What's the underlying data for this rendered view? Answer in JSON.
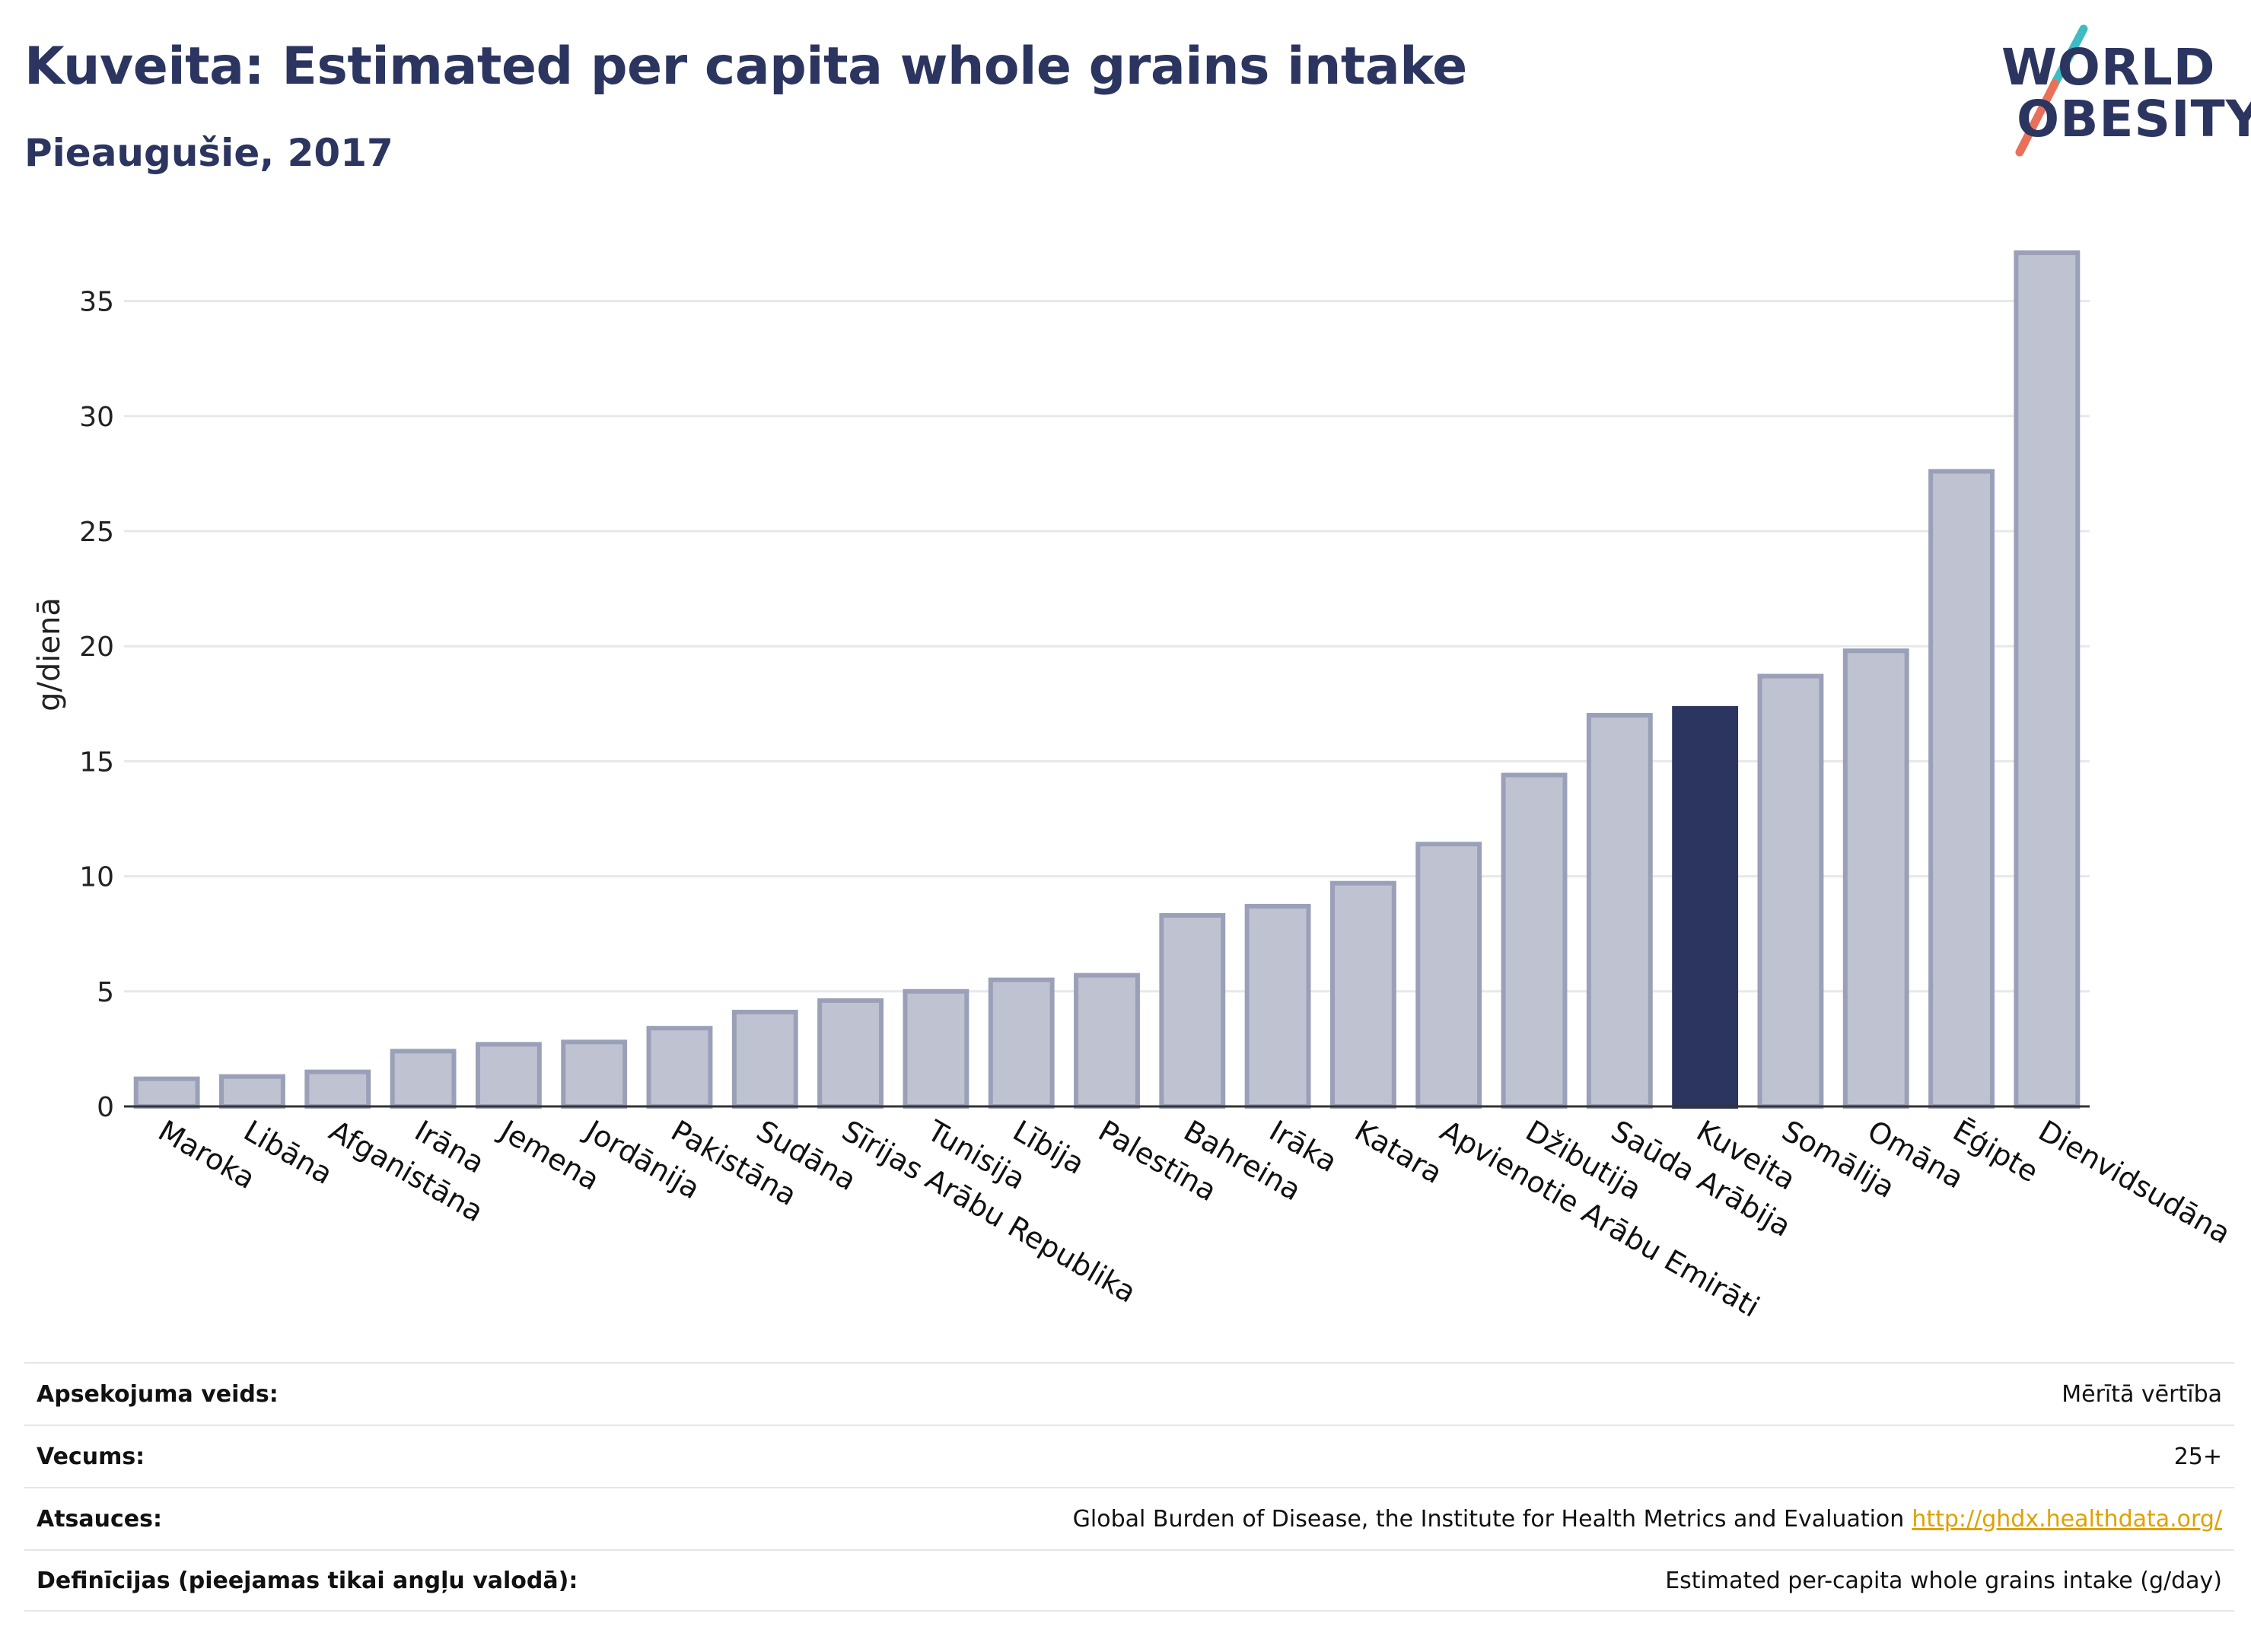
{
  "header": {
    "title": "Kuveita: Estimated per capita whole grains intake",
    "subtitle": "Pieaugušie, 2017"
  },
  "logo": {
    "line1": "WORLD",
    "line2": "OBESITY"
  },
  "colors": {
    "highlight": "#2b3560",
    "bar_fill": "#bfc2d1",
    "bar_stroke": "#9aa0b8",
    "grid": "#e6e8ec",
    "logo_teal": "#3fbcc3",
    "logo_coral": "#e9705a"
  },
  "chart_data": {
    "type": "bar",
    "ylabel": "g/dienā",
    "xlabel": "",
    "ylim": [
      0,
      37.5
    ],
    "yticks": [
      0,
      5,
      10,
      15,
      20,
      25,
      30,
      35
    ],
    "grid": true,
    "highlight": "Kuveita",
    "categories": [
      "Maroka",
      "Libāna",
      "Afganistāna",
      "Irāna",
      "Jemena",
      "Jordānija",
      "Pakistāna",
      "Sudāna",
      "Sīrijas Arābu Republika",
      "Tunisija",
      "Lībija",
      "Palestīna",
      "Bahreina",
      "Irāka",
      "Katara",
      "Apvienotie Arābu Emirāti",
      "Džibutija",
      "Saūda Arābija",
      "Kuveita",
      "Somālija",
      "Omāna",
      "Ēģipte",
      "Dienvidsudāna"
    ],
    "values": [
      1.2,
      1.3,
      1.5,
      2.4,
      2.7,
      2.8,
      3.4,
      4.1,
      4.6,
      5.0,
      5.5,
      5.7,
      8.3,
      8.7,
      9.7,
      11.4,
      14.4,
      17.0,
      17.3,
      18.7,
      19.8,
      27.6,
      37.1
    ]
  },
  "meta": [
    {
      "label": "Apsekojuma veids:",
      "value": "Mērītā vērtība",
      "link": ""
    },
    {
      "label": "Vecums:",
      "value": "25+",
      "link": ""
    },
    {
      "label": "Atsauces:",
      "value": "Global Burden of Disease, the Institute for Health Metrics and Evaluation",
      "link": "http://ghdx.healthdata.org/"
    },
    {
      "label": "Definīcijas (pieejamas tikai angļu valodā):",
      "value": "Estimated per-capita whole grains intake (g/day)",
      "link": ""
    }
  ]
}
